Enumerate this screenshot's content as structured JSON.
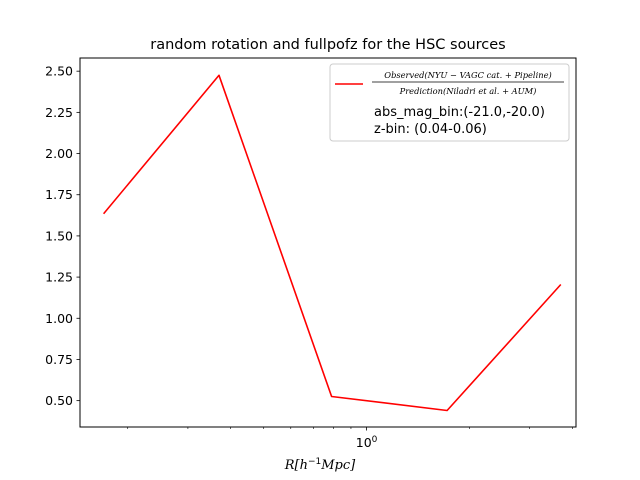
{
  "chart_data": {
    "type": "line",
    "title": "random rotation and fullpofz for the HSC sources",
    "xlabel": "R[h^{-1}Mpc]",
    "ylabel": "",
    "x_scale": "log",
    "xlim": [
      0.145,
      4.1
    ],
    "ylim": [
      0.34,
      2.58
    ],
    "grid": false,
    "legend_position": "top-right",
    "x_ticks": [
      {
        "value": 1,
        "label": "10^0"
      }
    ],
    "y_ticks": [
      {
        "value": 0.5,
        "label": "0.50"
      },
      {
        "value": 0.75,
        "label": "0.75"
      },
      {
        "value": 1.0,
        "label": "1.00"
      },
      {
        "value": 1.25,
        "label": "1.25"
      },
      {
        "value": 1.5,
        "label": "1.50"
      },
      {
        "value": 1.75,
        "label": "1.75"
      },
      {
        "value": 2.0,
        "label": "2.00"
      },
      {
        "value": 2.25,
        "label": "2.25"
      },
      {
        "value": 2.5,
        "label": "2.50"
      }
    ],
    "series": [
      {
        "name": "Observed(NYU-VAGC cat.+Pipeline) / Prediction(Niladri et al.+AUM)",
        "legend_numerator": "Observed(NYU − VAGC cat. + Pipeline)",
        "legend_denominator": "Prediction(Niladri et al. + AUM)",
        "color": "#ff0000",
        "x": [
          0.17,
          0.37,
          0.79,
          1.72,
          3.7
        ],
        "y": [
          1.635,
          2.475,
          0.525,
          0.44,
          1.205
        ]
      }
    ],
    "legend_extra": [
      "abs_mag_bin:(-21.0,-20.0)",
      "z-bin: (0.04-0.06)"
    ]
  }
}
